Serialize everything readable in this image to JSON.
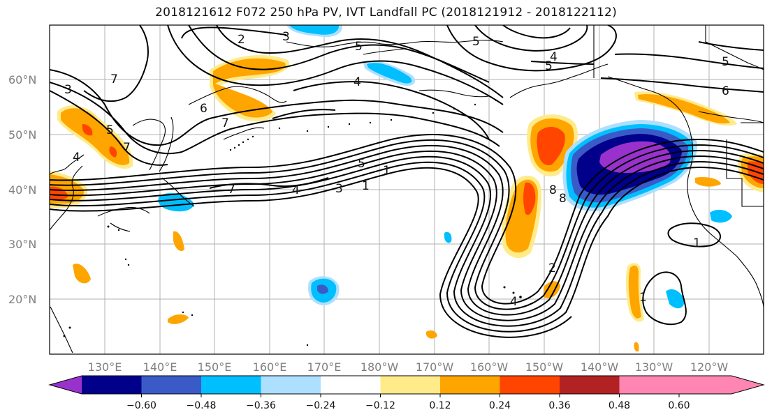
{
  "title": "2018121612 F072 250 hPa PV, IVT Landfall PC (2018121912 - 2018122112)",
  "latitude_labels": [
    "60°N",
    "50°N",
    "40°N",
    "30°N",
    "20°N"
  ],
  "longitude_labels": [
    "130°E",
    "140°E",
    "150°E",
    "160°E",
    "170°E",
    "180°W",
    "170°W",
    "160°W",
    "150°W",
    "140°W",
    "130°W",
    "120°W"
  ],
  "colorbar": {
    "colors": [
      "#9932CC",
      "#00008B",
      "#3A5BC7",
      "#00BFFF",
      "#ADDFFF",
      "#FFFFFF",
      "#FFEB8A",
      "#FFA500",
      "#FF4500",
      "#B22222",
      "#FF85B3"
    ],
    "tick_labels": [
      "−0.60",
      "−0.48",
      "−0.36",
      "−0.24",
      "−0.12",
      "0.12",
      "0.24",
      "0.36",
      "0.48",
      "0.60"
    ]
  },
  "contour_labels": [
    "2",
    "3",
    "5",
    "4",
    "5",
    "4",
    "5",
    "5",
    "6",
    "3",
    "7",
    "6",
    "7",
    "5",
    "4",
    "7",
    "7",
    "4",
    "3",
    "1",
    "1",
    "5",
    "8",
    "8",
    "2",
    "4",
    "1",
    "1"
  ]
}
